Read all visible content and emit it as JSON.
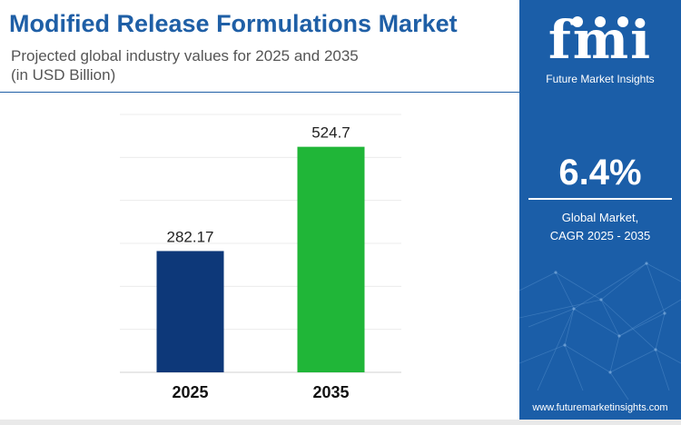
{
  "header": {
    "title": "Modified Release Formulations Market",
    "subtitle": "Projected global industry values for 2025 and 2035\n(in USD Billion)"
  },
  "chart_data": {
    "type": "bar",
    "categories": [
      "2025",
      "2035"
    ],
    "values": [
      282.17,
      524.7
    ],
    "data_labels": [
      "282.17",
      "524.7"
    ],
    "colors": [
      "#0d3879",
      "#20b638"
    ],
    "ylim": [
      0,
      600
    ],
    "grid": true,
    "legend": "none"
  },
  "brand": {
    "logo_text": "fmi",
    "logo_caption": "Future Market Insights",
    "website": "www.futuremarketinsights.com"
  },
  "stat": {
    "value": "6.4%",
    "label": "Global Market,\nCAGR 2025 - 2035"
  },
  "colors": {
    "title": "#1f5fa6",
    "panel": "#1b5ea8",
    "bar_2025": "#0d3879",
    "bar_2035": "#20b638"
  }
}
